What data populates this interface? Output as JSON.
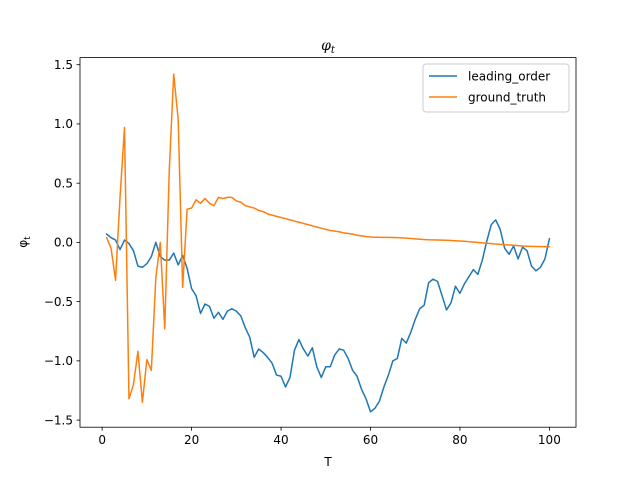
{
  "chart_data": {
    "type": "line",
    "title": "φ_t",
    "title_main": "φ",
    "title_sub": "t",
    "xlabel": "T",
    "ylabel": "φ_t",
    "ylabel_main": "φ",
    "ylabel_sub": "t",
    "xlim": [
      -4.95,
      105.95
    ],
    "ylim": [
      -1.56,
      1.56
    ],
    "xticks": [
      0,
      20,
      40,
      60,
      80,
      100
    ],
    "xtick_labels": [
      "0",
      "20",
      "40",
      "60",
      "80",
      "100"
    ],
    "yticks": [
      -1.5,
      -1.0,
      -0.5,
      0.0,
      0.5,
      1.0,
      1.5
    ],
    "ytick_labels": [
      "−1.5",
      "−1.0",
      "−0.5",
      "0.0",
      "0.5",
      "1.0",
      "1.5"
    ],
    "grid": false,
    "legend_position": "upper right",
    "series": [
      {
        "name": "leading_order",
        "color": "#1f77b4",
        "x": [
          1,
          2,
          3,
          4,
          5,
          6,
          7,
          8,
          9,
          10,
          11,
          12,
          13,
          14,
          15,
          16,
          17,
          18,
          19,
          20,
          21,
          22,
          23,
          24,
          25,
          26,
          27,
          28,
          29,
          30,
          31,
          32,
          33,
          34,
          35,
          36,
          37,
          38,
          39,
          40,
          41,
          42,
          43,
          44,
          45,
          46,
          47,
          48,
          49,
          50,
          51,
          52,
          53,
          54,
          55,
          56,
          57,
          58,
          59,
          60,
          61,
          62,
          63,
          64,
          65,
          66,
          67,
          68,
          69,
          70,
          71,
          72,
          73,
          74,
          75,
          76,
          77,
          78,
          79,
          80,
          81,
          82,
          83,
          84,
          85,
          86,
          87,
          88,
          89,
          90,
          91,
          92,
          93,
          94,
          95,
          96,
          97,
          98,
          99,
          100
        ],
        "y": [
          0.07,
          0.04,
          0.02,
          -0.06,
          0.02,
          -0.01,
          -0.07,
          -0.2,
          -0.21,
          -0.18,
          -0.12,
          0.0,
          -0.12,
          -0.15,
          -0.15,
          -0.09,
          -0.19,
          -0.11,
          -0.22,
          -0.39,
          -0.45,
          -0.6,
          -0.52,
          -0.54,
          -0.64,
          -0.59,
          -0.65,
          -0.58,
          -0.56,
          -0.58,
          -0.62,
          -0.72,
          -0.8,
          -0.97,
          -0.9,
          -0.93,
          -0.97,
          -1.02,
          -1.12,
          -1.13,
          -1.22,
          -1.14,
          -0.91,
          -0.82,
          -0.9,
          -0.96,
          -0.89,
          -1.05,
          -1.14,
          -1.05,
          -1.05,
          -0.95,
          -0.9,
          -0.91,
          -0.98,
          -1.08,
          -1.13,
          -1.24,
          -1.32,
          -1.43,
          -1.4,
          -1.34,
          -1.22,
          -1.12,
          -1.0,
          -0.98,
          -0.81,
          -0.85,
          -0.76,
          -0.65,
          -0.56,
          -0.53,
          -0.34,
          -0.31,
          -0.33,
          -0.45,
          -0.57,
          -0.51,
          -0.37,
          -0.43,
          -0.35,
          -0.29,
          -0.23,
          -0.27,
          -0.15,
          0.01,
          0.15,
          0.19,
          0.11,
          -0.05,
          -0.1,
          -0.03,
          -0.14,
          -0.04,
          -0.07,
          -0.2,
          -0.24,
          -0.21,
          -0.14,
          0.03
        ]
      },
      {
        "name": "ground_truth",
        "color": "#ff7f0e",
        "x": [
          1,
          2,
          3,
          4,
          5,
          6,
          7,
          8,
          9,
          10,
          11,
          12,
          13,
          14,
          15,
          16,
          17,
          18,
          19,
          20,
          21,
          22,
          23,
          24,
          25,
          26,
          27,
          28,
          29,
          30,
          31,
          32,
          33,
          34,
          35,
          36,
          37,
          38,
          39,
          40,
          41,
          42,
          43,
          44,
          45,
          46,
          47,
          48,
          49,
          50,
          51,
          52,
          53,
          54,
          55,
          56,
          57,
          58,
          59,
          60,
          61,
          62,
          63,
          64,
          65,
          66,
          67,
          68,
          69,
          70,
          71,
          72,
          73,
          74,
          75,
          76,
          77,
          78,
          79,
          80,
          81,
          82,
          83,
          84,
          85,
          86,
          87,
          88,
          89,
          90,
          91,
          92,
          93,
          94,
          95,
          96,
          97,
          98,
          99,
          100
        ],
        "y": [
          0.04,
          -0.05,
          -0.32,
          0.38,
          0.97,
          -1.32,
          -1.2,
          -0.92,
          -1.35,
          -0.99,
          -1.08,
          -0.3,
          0.0,
          -0.73,
          0.6,
          1.42,
          1.04,
          -0.38,
          0.28,
          0.29,
          0.36,
          0.33,
          0.37,
          0.33,
          0.31,
          0.38,
          0.37,
          0.38,
          0.38,
          0.35,
          0.34,
          0.31,
          0.3,
          0.29,
          0.27,
          0.26,
          0.24,
          0.23,
          0.22,
          0.21,
          0.2,
          0.19,
          0.18,
          0.17,
          0.16,
          0.15,
          0.14,
          0.13,
          0.12,
          0.11,
          0.1,
          0.095,
          0.09,
          0.08,
          0.075,
          0.07,
          0.06,
          0.055,
          0.05,
          0.046,
          0.044,
          0.043,
          0.042,
          0.042,
          0.041,
          0.04,
          0.038,
          0.036,
          0.033,
          0.03,
          0.027,
          0.024,
          0.022,
          0.021,
          0.02,
          0.019,
          0.018,
          0.016,
          0.014,
          0.012,
          0.01,
          0.006,
          0.003,
          0.0,
          -0.004,
          -0.007,
          -0.01,
          -0.014,
          -0.017,
          -0.02,
          -0.022,
          -0.024,
          -0.027,
          -0.03,
          -0.032,
          -0.034,
          -0.035,
          -0.036,
          -0.036,
          -0.036
        ]
      }
    ]
  }
}
